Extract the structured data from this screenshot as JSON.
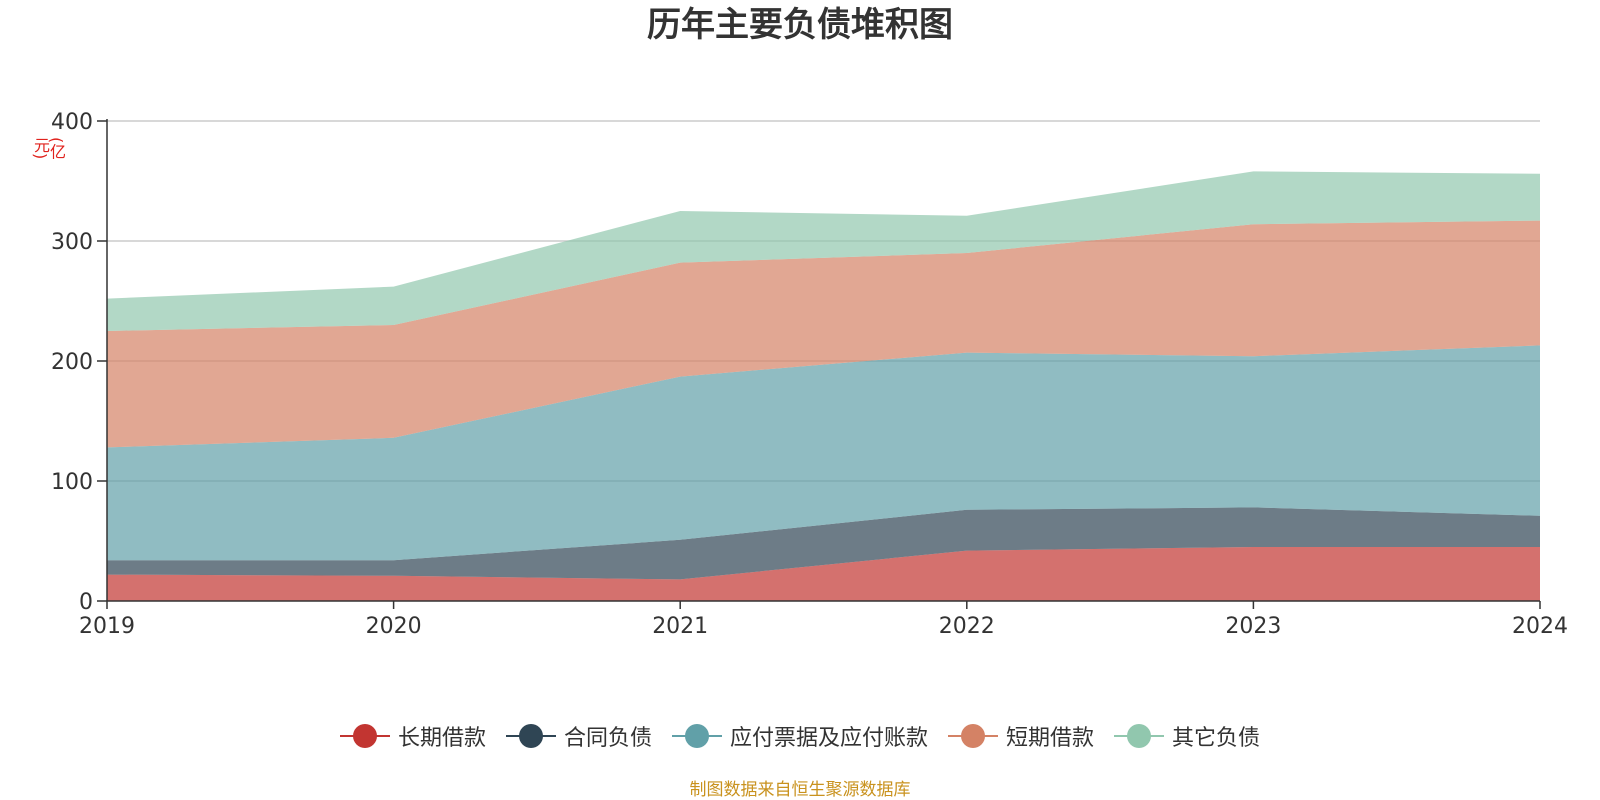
{
  "chart_data": {
    "type": "area",
    "stacked": true,
    "title": "历年主要负债堆积图",
    "ylabel": "(亿元)",
    "xlabel": "",
    "categories": [
      "2019",
      "2020",
      "2021",
      "2022",
      "2023",
      "2024"
    ],
    "ylim": [
      0,
      400
    ],
    "yticks": [
      "0",
      "100",
      "200",
      "300",
      "400"
    ],
    "grid": true,
    "legend_position": "bottom",
    "series": [
      {
        "name": "长期借款",
        "color": "#c23531",
        "values": [
          22,
          21,
          18,
          42,
          45,
          45
        ]
      },
      {
        "name": "合同负债",
        "color": "#2f4554",
        "values": [
          12,
          13,
          33,
          34,
          33,
          26
        ]
      },
      {
        "name": "应付票据及应付账款",
        "color": "#61a0a8",
        "values": [
          94,
          102,
          136,
          131,
          126,
          142
        ]
      },
      {
        "name": "短期借款",
        "color": "#d48265",
        "values": [
          97,
          94,
          95,
          83,
          110,
          104
        ]
      },
      {
        "name": "其它负债",
        "color": "#91c7ae",
        "values": [
          27,
          32,
          43,
          31,
          44,
          39
        ]
      }
    ],
    "source": "制图数据来自恒生聚源数据库"
  }
}
